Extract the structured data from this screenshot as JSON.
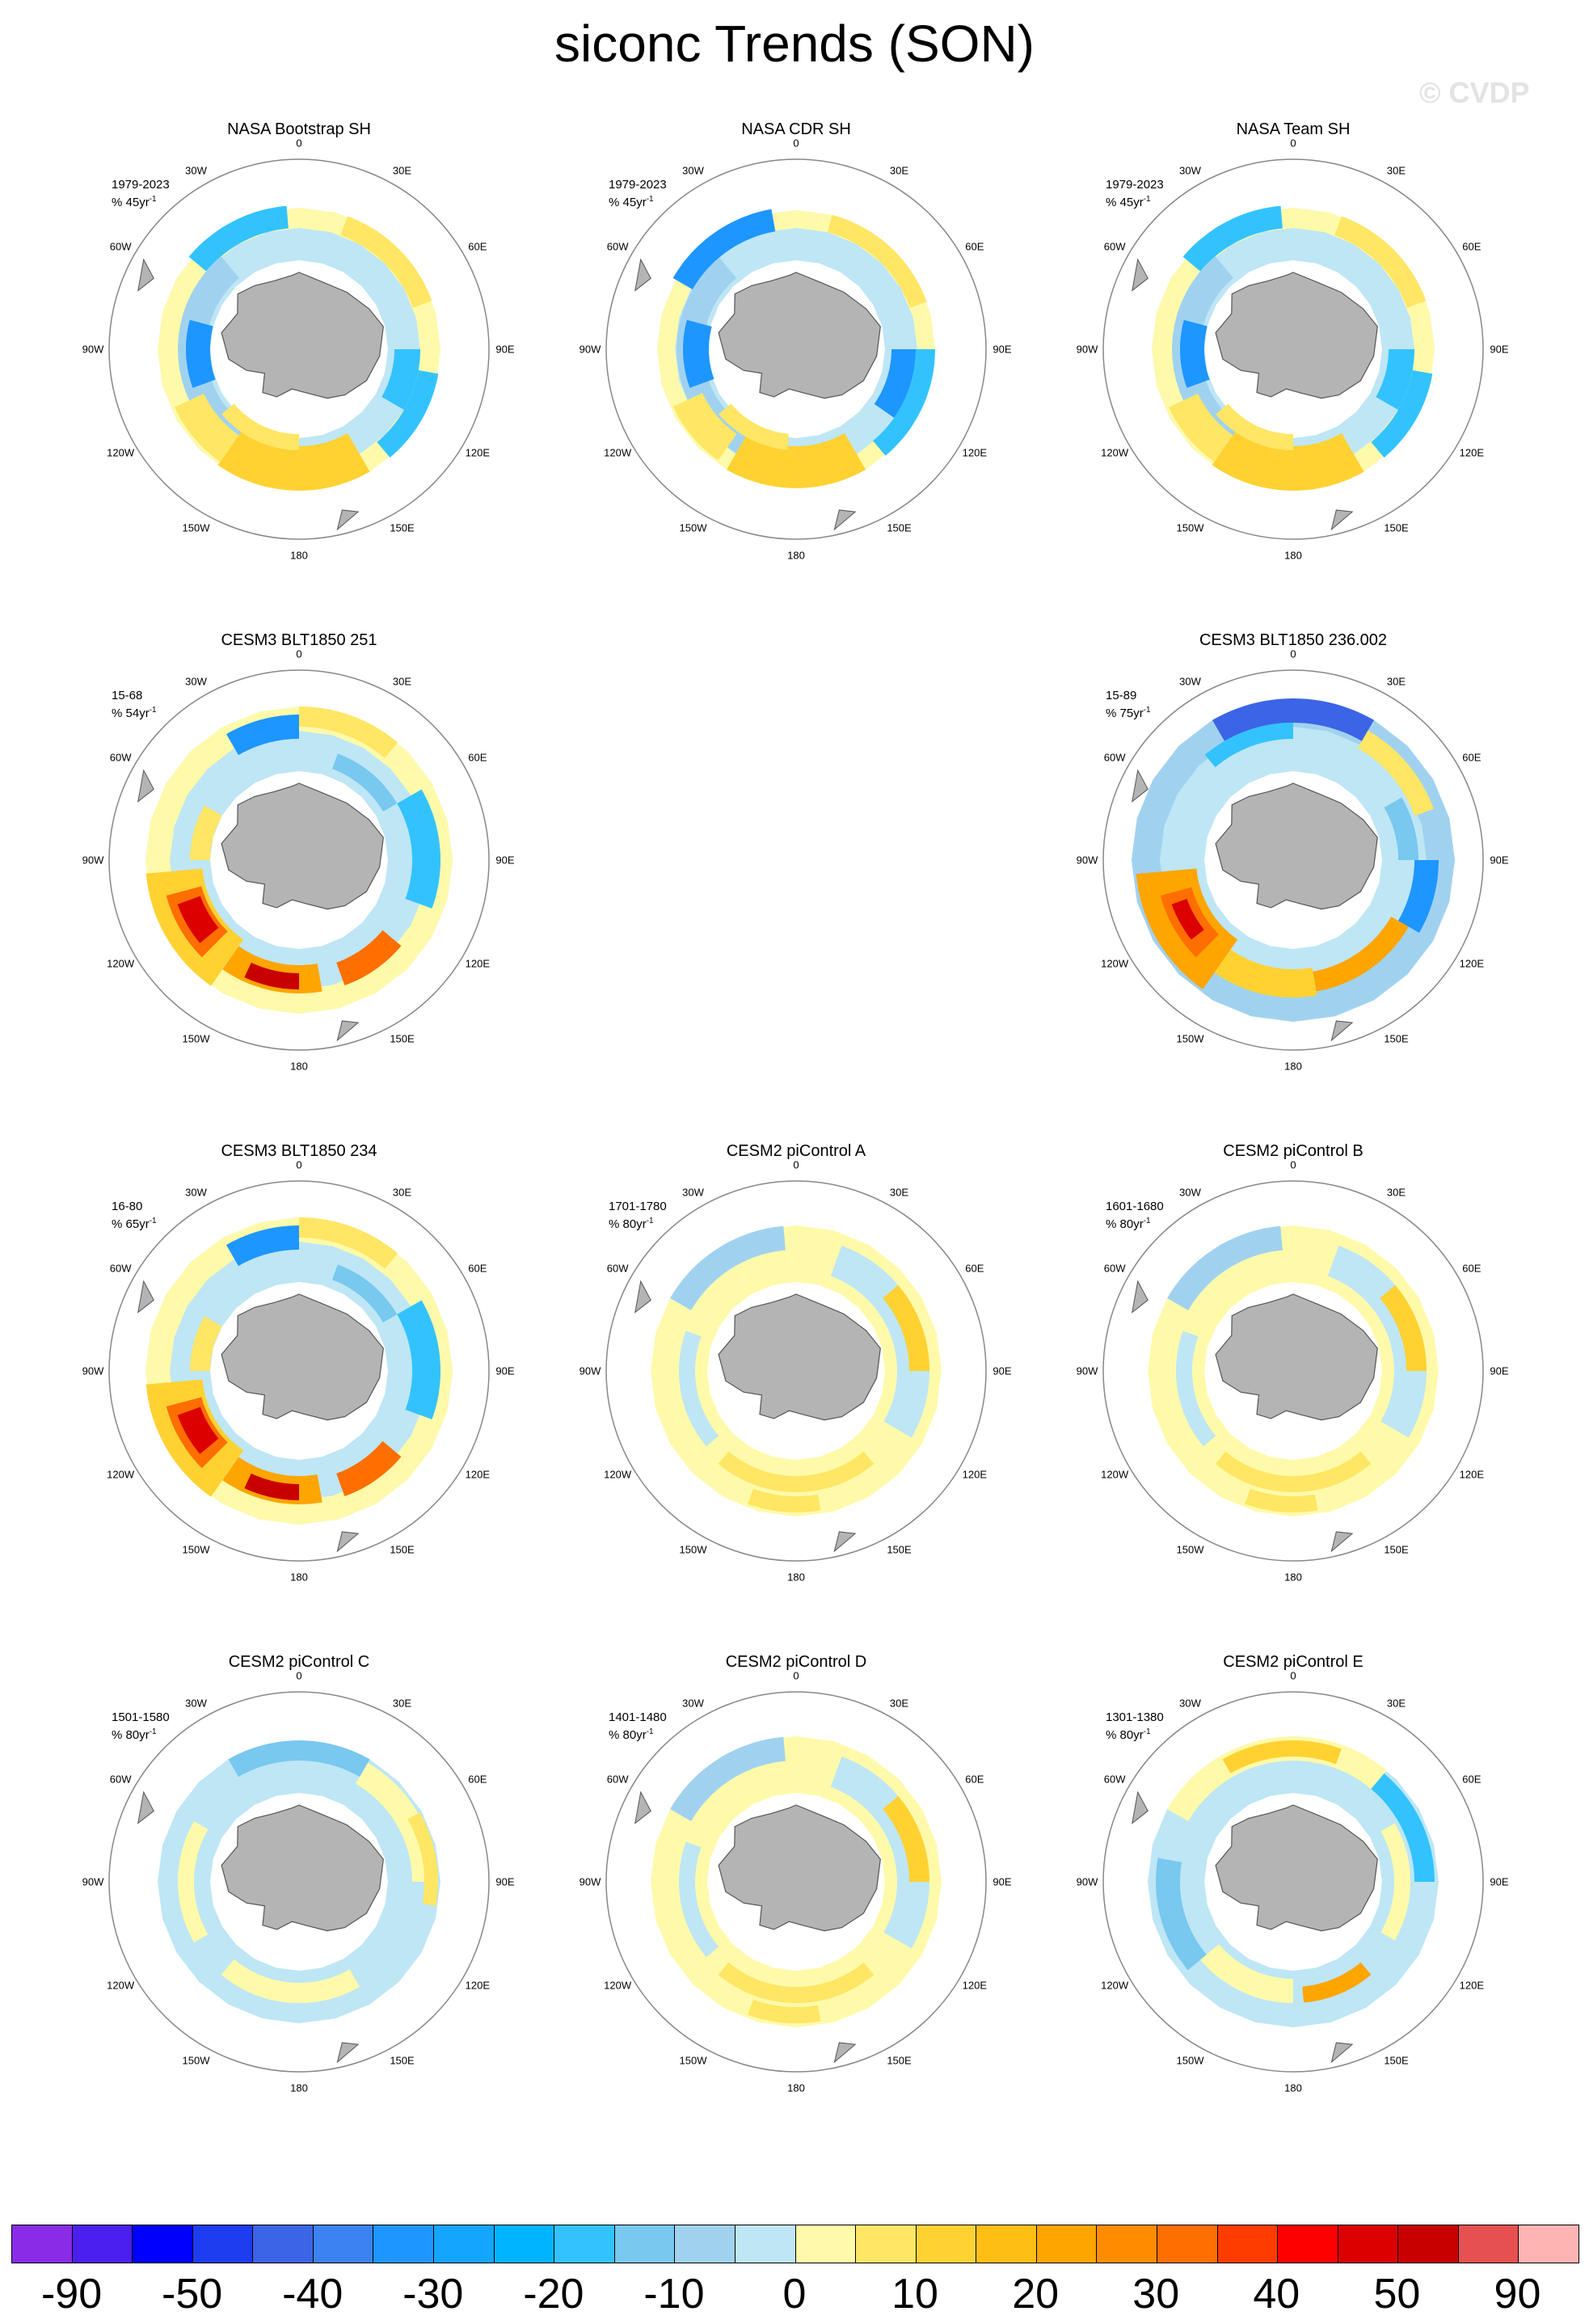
{
  "figure": {
    "title": "siconc Trends (SON)",
    "watermark": "© CVDP"
  },
  "map_labels": {
    "longitudes": [
      "0",
      "30E",
      "60E",
      "90E",
      "120E",
      "150E",
      "180",
      "150W",
      "120W",
      "90W",
      "60W",
      "30W"
    ]
  },
  "panels": [
    {
      "id": "nasa-bootstrap-sh",
      "title": "NASA Bootstrap SH",
      "period": "1979-2023",
      "units": "% 45yr",
      "style": "obs-a",
      "row": 0,
      "col": 0
    },
    {
      "id": "nasa-cdr-sh",
      "title": "NASA CDR SH",
      "period": "1979-2023",
      "units": "% 45yr",
      "style": "obs-b",
      "row": 0,
      "col": 1
    },
    {
      "id": "nasa-team-sh",
      "title": "NASA Team SH",
      "period": "1979-2023",
      "units": "% 45yr",
      "style": "obs-a",
      "row": 0,
      "col": 2
    },
    {
      "id": "cesm3-blt1850-251",
      "title": "CESM3 BLT1850 251",
      "period": "15-68",
      "units": "% 54yr",
      "style": "strong-red-west",
      "row": 1,
      "col": 0
    },
    {
      "id": "cesm3-blt1850-236002",
      "title": "CESM3 BLT1850 236.002",
      "period": "15-89",
      "units": "% 75yr",
      "style": "strong-blue-north",
      "row": 1,
      "col": 2
    },
    {
      "id": "cesm3-blt1850-234",
      "title": "CESM3 BLT1850 234",
      "period": "16-80",
      "units": "% 65yr",
      "style": "strong-red-west",
      "row": 2,
      "col": 0
    },
    {
      "id": "cesm2-picontrol-a",
      "title": "CESM2 piControl A",
      "period": "1701-1780",
      "units": "% 80yr",
      "style": "mild-yellow",
      "row": 2,
      "col": 1
    },
    {
      "id": "cesm2-picontrol-b",
      "title": "CESM2 piControl B",
      "period": "1601-1680",
      "units": "% 80yr",
      "style": "mild-yellow",
      "row": 2,
      "col": 2
    },
    {
      "id": "cesm2-picontrol-c",
      "title": "CESM2 piControl C",
      "period": "1501-1580",
      "units": "% 80yr",
      "style": "mild-blue",
      "row": 3,
      "col": 0
    },
    {
      "id": "cesm2-picontrol-d",
      "title": "CESM2 piControl D",
      "period": "1401-1480",
      "units": "% 80yr",
      "style": "mild-yellow",
      "row": 3,
      "col": 1
    },
    {
      "id": "cesm2-picontrol-e",
      "title": "CESM2 piControl E",
      "period": "1301-1380",
      "units": "% 80yr",
      "style": "mild-mixed",
      "row": 3,
      "col": 2
    }
  ],
  "colorbar": {
    "labels": [
      "-90",
      "-50",
      "-40",
      "-30",
      "-20",
      "-10",
      "0",
      "10",
      "20",
      "30",
      "40",
      "50",
      "90"
    ],
    "colors": [
      "#8a2be8",
      "#4b1ff0",
      "#0000ff",
      "#1e3cf0",
      "#3c64e6",
      "#3c82f0",
      "#1e96ff",
      "#14a5ff",
      "#00b4ff",
      "#32c3ff",
      "#78c8f0",
      "#a0d2f0",
      "#bee6f5",
      "#fffaaa",
      "#ffe664",
      "#ffd232",
      "#ffbe14",
      "#ffa500",
      "#ff8c00",
      "#ff6e00",
      "#ff3c00",
      "#ff0000",
      "#dc0000",
      "#c80000",
      "#e65050",
      "#ffb4b4"
    ]
  }
}
